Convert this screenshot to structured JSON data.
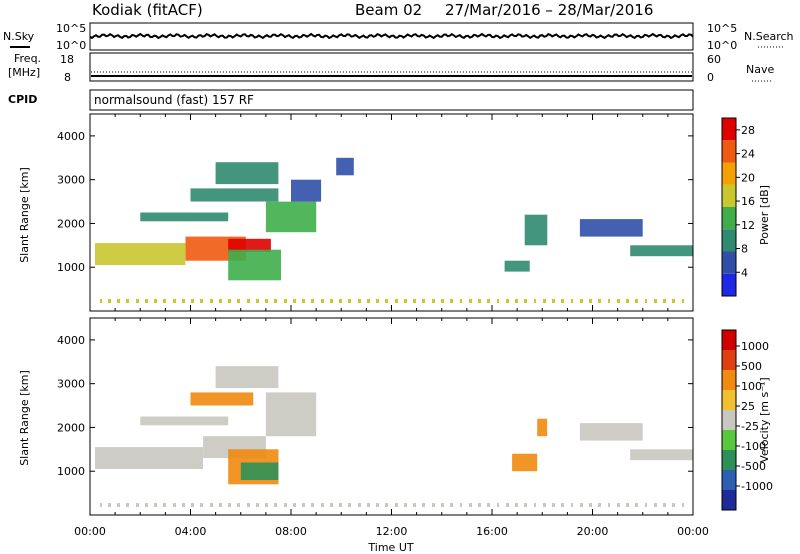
{
  "header": {
    "station": "Kodiak (fitACF)",
    "beam": "Beam 02",
    "dates": "27/Mar/2016 – 28/Mar/2016"
  },
  "top_panels": {
    "nsky_label": "N.Sky",
    "nsearch_label": "N.Search",
    "noise_ticks": [
      "10^5",
      "10^0"
    ],
    "freq_label_1": "Freq.",
    "freq_label_2": "[MHz]",
    "freq_ticks": [
      "18",
      "8"
    ],
    "nave_label": "Nave",
    "nave_ticks": [
      "60",
      "0"
    ],
    "cpid_label": "CPID",
    "cpid_text": "normalsound (fast) 157 RF"
  },
  "chart_data": [
    {
      "type": "heatmap",
      "title": "",
      "xlabel": "Time UT",
      "ylabel": "Slant Range [km]",
      "x_ticks": [
        "00:00",
        "04:00",
        "08:00",
        "12:00",
        "16:00",
        "20:00",
        "00:00"
      ],
      "xlim": [
        0,
        24
      ],
      "ylim": [
        0,
        4500
      ],
      "y_ticks": [
        "1000",
        "2000",
        "3000",
        "4000"
      ],
      "colorbar": {
        "label": "Power [dB]",
        "ticks": [
          "4",
          "8",
          "12",
          "16",
          "20",
          "24",
          "28"
        ],
        "colors": [
          "#1f28e6",
          "#2f4fa8",
          "#2f8a70",
          "#3fae4a",
          "#c9c72e",
          "#f4a000",
          "#f05a10",
          "#e00000"
        ],
        "range": [
          0,
          30
        ]
      },
      "regions": [
        {
          "x0": 0.2,
          "x1": 3.8,
          "y0": 1050,
          "y1": 1550,
          "value": 16
        },
        {
          "x0": 3.8,
          "x1": 6.2,
          "y0": 1150,
          "y1": 1700,
          "value": 24
        },
        {
          "x0": 5.5,
          "x1": 7.2,
          "y0": 1350,
          "y1": 1650,
          "value": 28
        },
        {
          "x0": 5.5,
          "x1": 7.6,
          "y0": 700,
          "y1": 1400,
          "value": 12
        },
        {
          "x0": 2.0,
          "x1": 5.5,
          "y0": 2050,
          "y1": 2250,
          "value": 8
        },
        {
          "x0": 4.0,
          "x1": 7.5,
          "y0": 2500,
          "y1": 2800,
          "value": 10
        },
        {
          "x0": 5.0,
          "x1": 7.5,
          "y0": 2900,
          "y1": 3400,
          "value": 9
        },
        {
          "x0": 7.0,
          "x1": 9.0,
          "y0": 1800,
          "y1": 2500,
          "value": 14
        },
        {
          "x0": 8.0,
          "x1": 9.2,
          "y0": 2500,
          "y1": 3000,
          "value": 6
        },
        {
          "x0": 9.8,
          "x1": 10.5,
          "y0": 3100,
          "y1": 3500,
          "value": 5
        },
        {
          "x0": 16.5,
          "x1": 17.5,
          "y0": 900,
          "y1": 1150,
          "value": 9
        },
        {
          "x0": 17.3,
          "x1": 18.2,
          "y0": 1500,
          "y1": 2200,
          "value": 8
        },
        {
          "x0": 19.5,
          "x1": 22.0,
          "y0": 1700,
          "y1": 2100,
          "value": 7
        },
        {
          "x0": 21.5,
          "x1": 24.0,
          "y0": 1250,
          "y1": 1500,
          "value": 8
        }
      ]
    },
    {
      "type": "heatmap",
      "title": "",
      "xlabel": "Time UT",
      "ylabel": "Slant Range [km]",
      "x_ticks": [
        "00:00",
        "04:00",
        "08:00",
        "12:00",
        "16:00",
        "20:00",
        "00:00"
      ],
      "xlim": [
        0,
        24
      ],
      "ylim": [
        0,
        4500
      ],
      "y_ticks": [
        "1000",
        "2000",
        "3000",
        "4000"
      ],
      "colorbar": {
        "label": "Velocity [m s⁻¹]",
        "ticks": [
          "1000",
          "500",
          "100",
          "25",
          "-25",
          "-100",
          "-500",
          "-1000"
        ],
        "colors": [
          "#1f2a9a",
          "#2b5fb2",
          "#2f8f58",
          "#58c83c",
          "#c8c8c0",
          "#f0c030",
          "#f08a10",
          "#e04010",
          "#d00000"
        ],
        "range": [
          -1000,
          1000
        ]
      },
      "regions": [
        {
          "x0": 0.2,
          "x1": 4.5,
          "y0": 1050,
          "y1": 1550,
          "value": 0
        },
        {
          "x0": 4.5,
          "x1": 7.0,
          "y0": 1300,
          "y1": 1800,
          "value": 0
        },
        {
          "x0": 5.5,
          "x1": 7.5,
          "y0": 700,
          "y1": 1500,
          "value": -300
        },
        {
          "x0": 6.0,
          "x1": 7.5,
          "y0": 800,
          "y1": 1200,
          "value": 150
        },
        {
          "x0": 2.0,
          "x1": 5.5,
          "y0": 2050,
          "y1": 2250,
          "value": 0
        },
        {
          "x0": 4.0,
          "x1": 6.5,
          "y0": 2500,
          "y1": 2800,
          "value": -200
        },
        {
          "x0": 5.0,
          "x1": 7.5,
          "y0": 2900,
          "y1": 3400,
          "value": 0
        },
        {
          "x0": 7.0,
          "x1": 9.0,
          "y0": 1800,
          "y1": 2800,
          "value": 0
        },
        {
          "x0": 16.8,
          "x1": 17.8,
          "y0": 1000,
          "y1": 1400,
          "value": -300
        },
        {
          "x0": 17.8,
          "x1": 18.2,
          "y0": 1800,
          "y1": 2200,
          "value": -150
        },
        {
          "x0": 19.5,
          "x1": 22.0,
          "y0": 1700,
          "y1": 2100,
          "value": 0
        },
        {
          "x0": 21.5,
          "x1": 24.0,
          "y0": 1250,
          "y1": 1500,
          "value": 0
        }
      ]
    }
  ]
}
